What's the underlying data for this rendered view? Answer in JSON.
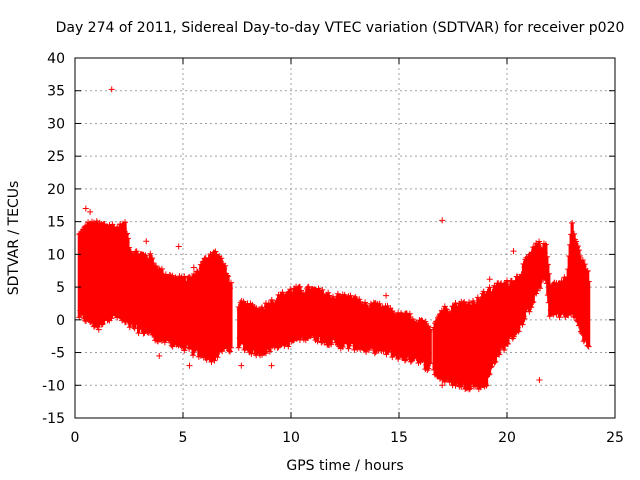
{
  "chart_data": {
    "type": "scatter",
    "title": "Day 274 of 2011, Sidereal Day-to-day VTEC variation (SDTVAR) for receiver p020",
    "xlabel": "GPS time / hours",
    "ylabel": "SDTVAR / TECUs",
    "xlim": [
      0,
      25
    ],
    "ylim": [
      -15,
      40
    ],
    "xticks": [
      0,
      5,
      10,
      15,
      20,
      25
    ],
    "yticks": [
      -15,
      -10,
      -5,
      0,
      5,
      10,
      15,
      20,
      25,
      30,
      35,
      40
    ],
    "grid": true,
    "marker": "+",
    "series_color": "#ff0000",
    "envelope": [
      {
        "x": 0.2,
        "low": 1.0,
        "high": 12.5
      },
      {
        "x": 0.6,
        "low": 0.5,
        "high": 14.0
      },
      {
        "x": 1.0,
        "low": -0.5,
        "high": 14.0
      },
      {
        "x": 1.5,
        "low": 1.0,
        "high": 14.0
      },
      {
        "x": 2.0,
        "low": 1.0,
        "high": 13.5
      },
      {
        "x": 2.3,
        "low": 0.0,
        "high": 14.0
      },
      {
        "x": 2.6,
        "low": -0.5,
        "high": 10.0
      },
      {
        "x": 3.0,
        "low": -1.0,
        "high": 9.5
      },
      {
        "x": 3.5,
        "low": -1.5,
        "high": 9.0
      },
      {
        "x": 3.9,
        "low": -2.5,
        "high": 7.0
      },
      {
        "x": 4.5,
        "low": -3.0,
        "high": 6.0
      },
      {
        "x": 5.0,
        "low": -3.5,
        "high": 5.5
      },
      {
        "x": 5.5,
        "low": -4.5,
        "high": 6.0
      },
      {
        "x": 6.0,
        "low": -5.0,
        "high": 8.5
      },
      {
        "x": 6.4,
        "low": -5.5,
        "high": 10.0
      },
      {
        "x": 6.8,
        "low": -4.0,
        "high": 8.5
      },
      {
        "x": 7.2,
        "low": -4.0,
        "high": 5.0
      },
      {
        "x": 7.5,
        "low": -3.0,
        "high": 2.0
      },
      {
        "x": 8.0,
        "low": -4.0,
        "high": 1.5
      },
      {
        "x": 8.5,
        "low": -4.5,
        "high": 1.0
      },
      {
        "x": 9.0,
        "low": -4.0,
        "high": 2.0
      },
      {
        "x": 9.5,
        "low": -3.0,
        "high": 3.0
      },
      {
        "x": 10.0,
        "low": -3.0,
        "high": 4.0
      },
      {
        "x": 10.5,
        "low": -2.0,
        "high": 4.0
      },
      {
        "x": 11.0,
        "low": -2.0,
        "high": 4.0
      },
      {
        "x": 11.5,
        "low": -2.5,
        "high": 3.5
      },
      {
        "x": 12.0,
        "low": -3.0,
        "high": 3.0
      },
      {
        "x": 12.5,
        "low": -3.5,
        "high": 3.0
      },
      {
        "x": 13.0,
        "low": -3.5,
        "high": 2.5
      },
      {
        "x": 13.5,
        "low": -4.0,
        "high": 1.5
      },
      {
        "x": 14.0,
        "low": -4.0,
        "high": 1.5
      },
      {
        "x": 14.5,
        "low": -4.5,
        "high": 1.0
      },
      {
        "x": 15.0,
        "low": -5.0,
        "high": 0.0
      },
      {
        "x": 15.5,
        "low": -5.5,
        "high": 0.0
      },
      {
        "x": 15.8,
        "low": -5.0,
        "high": -1.5
      },
      {
        "x": 16.0,
        "low": -6.0,
        "high": -1.0
      },
      {
        "x": 16.5,
        "low": -7.0,
        "high": -1.5
      },
      {
        "x": 17.0,
        "low": -8.5,
        "high": 1.0
      },
      {
        "x": 17.5,
        "low": -9.0,
        "high": 1.5
      },
      {
        "x": 18.0,
        "low": -9.5,
        "high": 2.0
      },
      {
        "x": 18.5,
        "low": -9.5,
        "high": 2.0
      },
      {
        "x": 19.0,
        "low": -9.5,
        "high": 3.5
      },
      {
        "x": 19.5,
        "low": -5.0,
        "high": 4.5
      },
      {
        "x": 20.0,
        "low": -3.0,
        "high": 5.0
      },
      {
        "x": 20.5,
        "low": -1.0,
        "high": 6.0
      },
      {
        "x": 21.0,
        "low": 2.0,
        "high": 9.0
      },
      {
        "x": 21.4,
        "low": 5.0,
        "high": 11.0
      },
      {
        "x": 21.8,
        "low": 7.0,
        "high": 10.5
      },
      {
        "x": 22.0,
        "low": 1.0,
        "high": 5.0
      },
      {
        "x": 22.5,
        "low": 1.5,
        "high": 5.0
      },
      {
        "x": 22.8,
        "low": 1.0,
        "high": 6.0
      },
      {
        "x": 23.0,
        "low": 2.0,
        "high": 14.0
      },
      {
        "x": 23.4,
        "low": -1.0,
        "high": 9.0
      },
      {
        "x": 23.8,
        "low": -4.0,
        "high": 6.0
      }
    ],
    "gaps": [
      {
        "from": 7.25,
        "to": 7.55
      },
      {
        "from": 16.45,
        "to": 16.6
      }
    ],
    "outliers": [
      {
        "x": 1.7,
        "y": 35.2
      },
      {
        "x": 17.0,
        "y": 15.2
      },
      {
        "x": 21.5,
        "y": -9.2
      },
      {
        "x": 0.5,
        "y": 17.0
      },
      {
        "x": 0.7,
        "y": 16.5
      },
      {
        "x": 1.1,
        "y": -1.5
      },
      {
        "x": 4.8,
        "y": 11.2
      },
      {
        "x": 3.9,
        "y": -5.5
      },
      {
        "x": 5.3,
        "y": -7.0
      },
      {
        "x": 9.1,
        "y": -7.0
      },
      {
        "x": 7.7,
        "y": -7.0
      },
      {
        "x": 14.4,
        "y": 3.7
      },
      {
        "x": 19.2,
        "y": 6.2
      },
      {
        "x": 20.3,
        "y": 10.5
      },
      {
        "x": 17.0,
        "y": -10.0
      },
      {
        "x": 3.3,
        "y": 12.0
      },
      {
        "x": 5.5,
        "y": 8.0
      }
    ]
  }
}
